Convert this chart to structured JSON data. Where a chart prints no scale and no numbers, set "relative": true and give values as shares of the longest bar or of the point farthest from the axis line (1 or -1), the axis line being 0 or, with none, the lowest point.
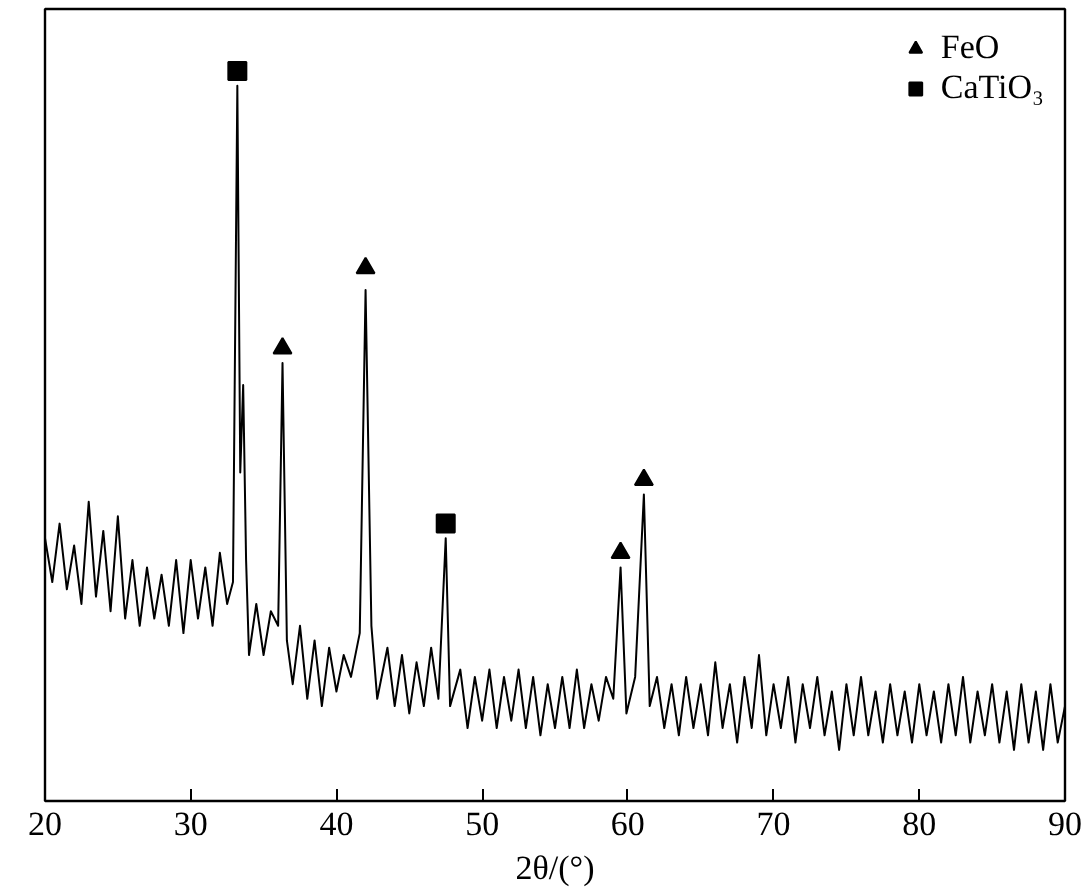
{
  "chart_data": {
    "type": "line",
    "xlabel": "2θ/(°)",
    "relative": true,
    "xlim": [
      20,
      90
    ],
    "xticks": [
      20,
      30,
      40,
      50,
      60,
      70,
      80,
      90
    ],
    "tick_labels": "x",
    "grid": false,
    "legend": "top right",
    "series": [
      {
        "color": "#000000",
        "marker": "none",
        "x": [
          20,
          20.5,
          21,
          21.5,
          22,
          22.5,
          23,
          23.5,
          24,
          24.5,
          25,
          25.5,
          26,
          26.5,
          27,
          27.5,
          28,
          28.5,
          29,
          29.5,
          30,
          30.5,
          31,
          31.5,
          32,
          32.5,
          32.9,
          33.2,
          33.4,
          33.6,
          33.8,
          34,
          34.5,
          35,
          35.5,
          36,
          36.3,
          36.6,
          37,
          37.5,
          38,
          38.5,
          39,
          39.5,
          40,
          40.5,
          41,
          41.6,
          42.0,
          42.4,
          42.8,
          43.5,
          44,
          44.5,
          45,
          45.5,
          46,
          46.5,
          47,
          47.5,
          47.8,
          48.5,
          49,
          49.5,
          50,
          50.5,
          51,
          51.5,
          52,
          52.5,
          53,
          53.5,
          54,
          54.5,
          55,
          55.5,
          56,
          56.5,
          57,
          57.5,
          58,
          58.5,
          59,
          59.5,
          59.9,
          60.5,
          61.1,
          61.5,
          62,
          62.5,
          63,
          63.5,
          64,
          64.5,
          65,
          65.5,
          66,
          66.5,
          67,
          67.5,
          68,
          68.5,
          69,
          69.5,
          70,
          70.5,
          71,
          71.5,
          72,
          72.5,
          73,
          73.5,
          74,
          74.5,
          75,
          75.5,
          76,
          76.5,
          77,
          77.5,
          78,
          78.5,
          79,
          79.5,
          80,
          80.5,
          81,
          81.5,
          82,
          82.5,
          83,
          83.5,
          84,
          84.5,
          85,
          85.5,
          86,
          86.5,
          87,
          87.5,
          88,
          88.5,
          89,
          89.5,
          90
        ],
        "values": [
          0.36,
          0.3,
          0.38,
          0.29,
          0.35,
          0.27,
          0.41,
          0.28,
          0.37,
          0.26,
          0.39,
          0.25,
          0.33,
          0.24,
          0.32,
          0.25,
          0.31,
          0.24,
          0.33,
          0.23,
          0.33,
          0.25,
          0.32,
          0.24,
          0.34,
          0.27,
          0.3,
          0.98,
          0.45,
          0.57,
          0.33,
          0.2,
          0.27,
          0.2,
          0.26,
          0.24,
          0.6,
          0.22,
          0.16,
          0.24,
          0.14,
          0.22,
          0.13,
          0.21,
          0.15,
          0.2,
          0.17,
          0.23,
          0.7,
          0.24,
          0.14,
          0.21,
          0.13,
          0.2,
          0.12,
          0.19,
          0.13,
          0.21,
          0.14,
          0.36,
          0.13,
          0.18,
          0.1,
          0.17,
          0.11,
          0.18,
          0.1,
          0.17,
          0.11,
          0.18,
          0.1,
          0.17,
          0.09,
          0.16,
          0.1,
          0.17,
          0.1,
          0.18,
          0.1,
          0.16,
          0.11,
          0.17,
          0.14,
          0.32,
          0.12,
          0.17,
          0.42,
          0.13,
          0.17,
          0.1,
          0.16,
          0.09,
          0.17,
          0.1,
          0.16,
          0.09,
          0.19,
          0.1,
          0.16,
          0.08,
          0.17,
          0.1,
          0.2,
          0.09,
          0.16,
          0.1,
          0.17,
          0.08,
          0.16,
          0.1,
          0.17,
          0.09,
          0.15,
          0.07,
          0.16,
          0.09,
          0.17,
          0.09,
          0.15,
          0.08,
          0.16,
          0.09,
          0.15,
          0.08,
          0.16,
          0.09,
          0.15,
          0.08,
          0.16,
          0.09,
          0.17,
          0.08,
          0.15,
          0.09,
          0.16,
          0.08,
          0.15,
          0.07,
          0.16,
          0.08,
          0.15,
          0.07,
          0.16,
          0.08,
          0.13
        ]
      },
      {
        "type": "scatter",
        "name": "FeO",
        "color": "#000000",
        "marker": "triangle",
        "x": [
          36.3,
          42.0,
          59.5,
          61.1
        ],
        "values": [
          0.62,
          0.73,
          0.34,
          0.44
        ]
      },
      {
        "type": "scatter",
        "name": "CaTiO₃",
        "color": "#000000",
        "marker": "square",
        "x": [
          33.2,
          47.5
        ],
        "values": [
          1.0,
          0.38
        ]
      }
    ]
  }
}
